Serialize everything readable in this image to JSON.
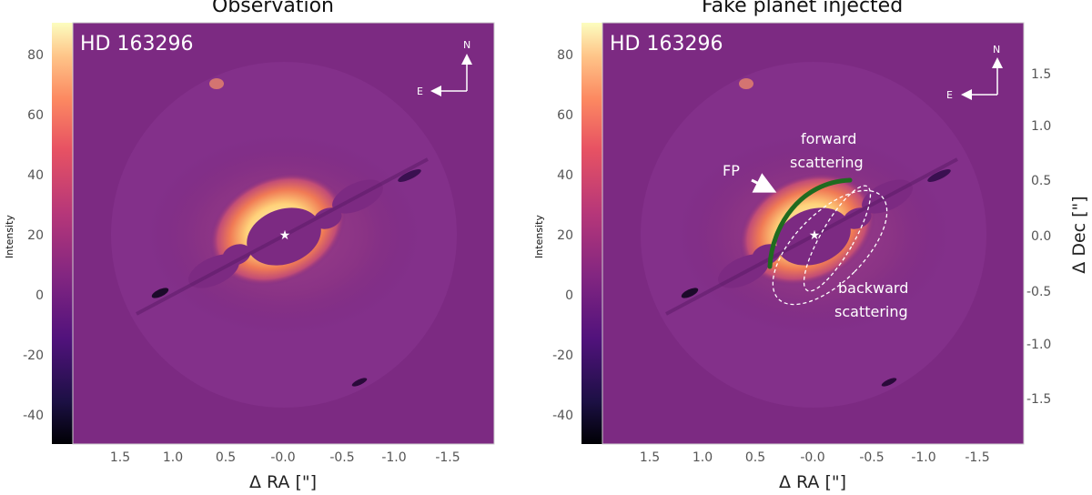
{
  "panels": [
    {
      "title": "Observation",
      "target": "HD 163296"
    },
    {
      "title": "Fake planet injected",
      "target": "HD 163296"
    }
  ],
  "compass": {
    "north": "N",
    "east": "E"
  },
  "annotations": {
    "fp": "FP",
    "forward_line1": "forward",
    "forward_line2": "scattering",
    "backward_line1": "backward",
    "backward_line2": "scattering"
  },
  "colors": {
    "background": "#7c2a82",
    "disk_bright": "#fff3c4",
    "fake_planet_arc": "#1f6b1f",
    "annotation": "#ffffff"
  },
  "chart_data": {
    "type": "image",
    "colormap": "magma",
    "colorbar": {
      "label": "Intensity",
      "ticks": [
        80,
        60,
        40,
        20,
        0,
        -20,
        -40
      ],
      "range": [
        -50,
        90
      ]
    },
    "x_axis": {
      "label": "Δ RA [\"]",
      "ticks": [
        1.5,
        1.0,
        0.5,
        -0.0,
        -0.5,
        -1.0,
        -1.5
      ],
      "tick_labels": [
        "1.5",
        "1.0",
        "0.5",
        "-0.0",
        "-0.5",
        "-1.0",
        "-1.5"
      ],
      "range": [
        2.0,
        -2.0
      ]
    },
    "y_axis": {
      "label": "Δ Dec [\"]",
      "ticks": [
        1.5,
        1.0,
        0.5,
        0.0,
        -0.5,
        -1.0,
        -1.5
      ],
      "tick_labels": [
        "1.5",
        "1.0",
        "0.5",
        "0.0",
        "-0.5",
        "-1.0",
        "-1.5"
      ],
      "range": [
        -2.0,
        2.0
      ]
    }
  }
}
